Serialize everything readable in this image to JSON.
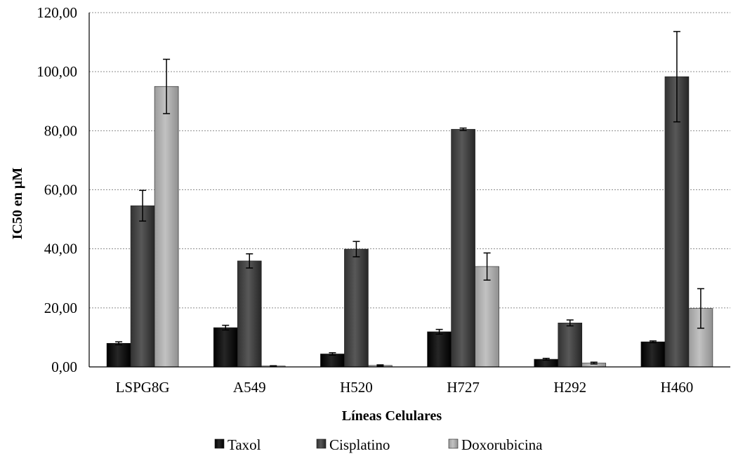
{
  "chart_data": {
    "type": "bar",
    "title": "",
    "xlabel": "Líneas Celulares",
    "ylabel": "IC50 en µM",
    "ylim": [
      0,
      120
    ],
    "yticks": [
      0,
      20,
      40,
      60,
      80,
      100,
      120
    ],
    "ytick_labels": [
      "0,00",
      "20,00",
      "40,00",
      "60,00",
      "80,00",
      "100,00",
      "120,00"
    ],
    "grid": true,
    "legend_position": "bottom",
    "categories": [
      "LSPG8G",
      "A549",
      "H520",
      "H727",
      "H292",
      "H460"
    ],
    "series": [
      {
        "name": "Taxol",
        "color": "#0a0a0a",
        "values": [
          8.0,
          13.3,
          4.4,
          11.9,
          2.6,
          8.5
        ],
        "errors": [
          0.5,
          0.8,
          0.4,
          0.8,
          0.3,
          0.3
        ]
      },
      {
        "name": "Cisplatino",
        "color": "#3c3c3c",
        "values": [
          54.6,
          35.9,
          39.9,
          80.5,
          14.9,
          98.3
        ],
        "errors": [
          5.2,
          2.4,
          2.6,
          0.4,
          1.0,
          15.3
        ]
      },
      {
        "name": "Doxorubicina",
        "color": "#a6a6a6",
        "values": [
          95.0,
          0.3,
          0.5,
          34.0,
          1.3,
          19.8
        ],
        "errors": [
          9.2,
          0.1,
          0.2,
          4.6,
          0.3,
          6.7
        ]
      }
    ]
  }
}
